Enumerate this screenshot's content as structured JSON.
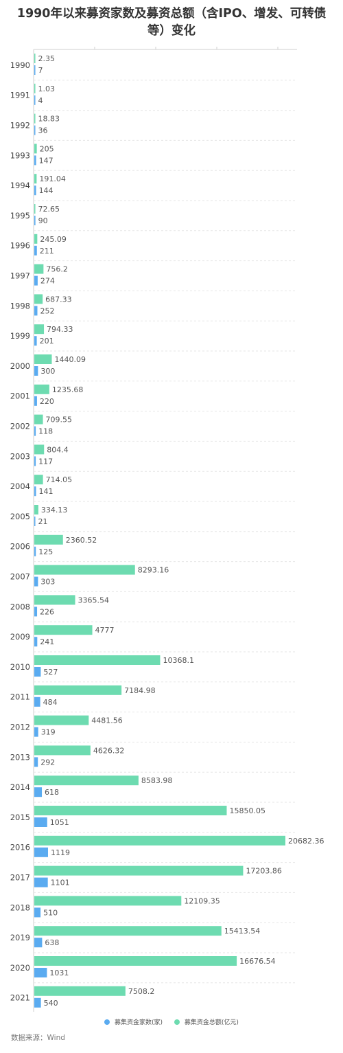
{
  "chart_data": {
    "type": "bar",
    "orientation": "horizontal",
    "title": "1990年以来募资家数及募资总额（含IPO、增发、可转债等）变化",
    "title_lines": [
      "1990年以来募资家数及募资总额（含IPO、增发、可转债",
      "等）变化"
    ],
    "categories": [
      "1990",
      "1991",
      "1992",
      "1993",
      "1994",
      "1995",
      "1996",
      "1997",
      "1998",
      "1999",
      "2000",
      "2001",
      "2002",
      "2003",
      "2004",
      "2005",
      "2006",
      "2007",
      "2008",
      "2009",
      "2010",
      "2011",
      "2012",
      "2013",
      "2014",
      "2015",
      "2016",
      "2017",
      "2018",
      "2019",
      "2020",
      "2021"
    ],
    "series": [
      {
        "name": "募集资金总额(亿元)",
        "color": "#6ddbb0",
        "values": [
          "2.35",
          "1.03",
          "18.83",
          "205",
          "191.04",
          "72.65",
          "245.09",
          "756.2",
          "687.33",
          "794.33",
          "1440.09",
          "1235.68",
          "709.55",
          "804.4",
          "714.05",
          "334.13",
          "2360.52",
          "8293.16",
          "3365.54",
          "4777",
          "10368.1",
          "7184.98",
          "4481.56",
          "4626.32",
          "8583.98",
          "15850.05",
          "20682.36",
          "17203.86",
          "12109.35",
          "15413.54",
          "16676.54",
          "7508.2"
        ]
      },
      {
        "name": "募集资金家数(家)",
        "color": "#5aabf0",
        "values": [
          "7",
          "4",
          "36",
          "147",
          "144",
          "90",
          "211",
          "274",
          "252",
          "201",
          "300",
          "220",
          "118",
          "117",
          "141",
          "21",
          "125",
          "303",
          "226",
          "241",
          "527",
          "484",
          "319",
          "292",
          "618",
          "1051",
          "1119",
          "1101",
          "510",
          "638",
          "1031",
          "540"
        ]
      }
    ],
    "legend_order": [
      1,
      0
    ],
    "legend_position": "bottom",
    "grid": true,
    "source": "数据来源：Wind"
  }
}
